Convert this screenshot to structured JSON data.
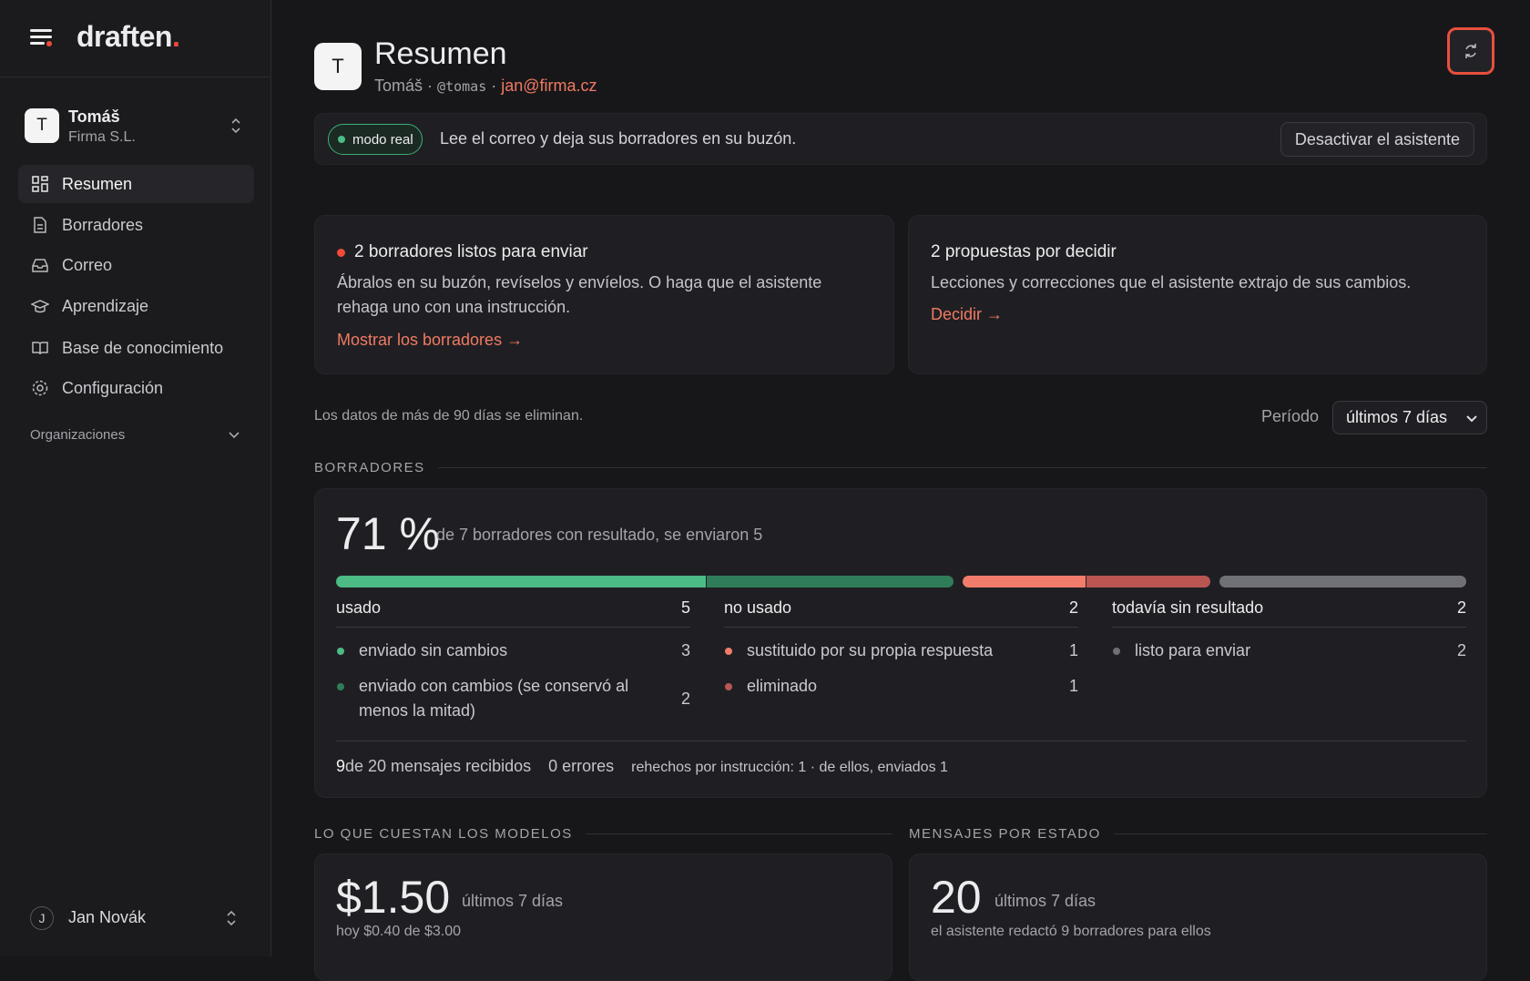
{
  "sidebar": {
    "brand": "draften",
    "brand_dot": ".",
    "org": {
      "avatar": "T",
      "name": "Tomáš",
      "company": "Firma S.L."
    },
    "nav": [
      "Resumen",
      "Borradores",
      "Correo",
      "Aprendizaje",
      "Base de conocimiento",
      "Configuración"
    ],
    "section": "Organizaciones",
    "user": {
      "avatar": "J",
      "name": "Jan Novák"
    }
  },
  "header": {
    "avatar": "T",
    "title": "Resumen",
    "name": "Tomáš",
    "separator": "·",
    "handle": "@tomas",
    "email": "jan@firma.cz"
  },
  "banner": {
    "badge": "modo real",
    "text": "Lee el correo y deja sus borradores en su buzón.",
    "button": "Desactivar el asistente"
  },
  "cards": [
    {
      "title": "2 borradores listos para enviar",
      "text": "Ábralos en su buzón, revíselos y envíelos. O haga que el asistente rehaga uno con una instrucción.",
      "link": "Mostrar los borradores →"
    },
    {
      "title": "2 propuestas por decidir",
      "text": "Lecciones y correcciones que el asistente extrajo de sus cambios.",
      "link": "Decidir →"
    }
  ],
  "retention": "Los datos de más de 90 días se eliminan.",
  "period": {
    "label": "Período",
    "value": "últimos 7 días"
  },
  "drafts": {
    "heading": "BORRADORES",
    "rate": "71 %",
    "summary": "de 7 borradores con resultado, se enviaron 5",
    "groups": [
      {
        "name": "usado",
        "total": 5,
        "items": [
          {
            "label": "enviado sin cambios",
            "count": 3,
            "color": "#4cbb86"
          },
          {
            "label": "enviado con cambios (se conservó al menos la mitad)",
            "count": 2,
            "color": "#2f7d58"
          }
        ]
      },
      {
        "name": "no usado",
        "total": 2,
        "items": [
          {
            "label": "sustituido por su propia respuesta",
            "count": 1,
            "color": "#f27c6b"
          },
          {
            "label": "eliminado",
            "count": 1,
            "color": "#b95652"
          }
        ]
      },
      {
        "name": "todavía sin resultado",
        "total": 2,
        "items": [
          {
            "label": "listo para enviar",
            "count": 2,
            "color": "#707077"
          }
        ]
      }
    ],
    "footer": {
      "received_count": "9",
      "received_text": "de 20 mensajes recibidos",
      "errors": "0 errores",
      "redone": "rehechos por instrucción: 1 · de ellos, enviados 1"
    }
  },
  "costs": {
    "heading": "LO QUE CUESTAN LOS MODELOS",
    "value": "$1.50",
    "period": "últimos 7 días",
    "detail": "hoy $0.40 de $3.00"
  },
  "messages": {
    "heading": "MENSAJES POR ESTADO",
    "value": "20",
    "period": "últimos 7 días",
    "detail": "el asistente redactó 9 borradores para ellos"
  }
}
